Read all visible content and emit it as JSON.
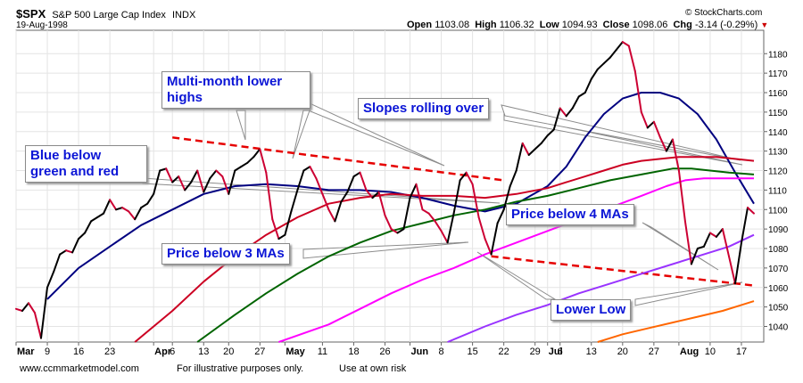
{
  "header": {
    "ticker": "$SPX",
    "name": "S&P 500 Large Cap Index",
    "exchange": "INDX",
    "date": "19-Aug-1998",
    "attribution": "© StockCharts.com",
    "quote": {
      "open_label": "Open",
      "open": "1103.08",
      "high_label": "High",
      "high": "1106.32",
      "low_label": "Low",
      "low": "1094.93",
      "close_label": "Close",
      "close": "1098.06",
      "chg_label": "Chg",
      "chg": "-3.14 (-0.29%)",
      "chg_arrow": "▼",
      "chg_color": "#cc0000"
    }
  },
  "footer": {
    "website": "www.ccmmarketmodel.com",
    "disclaimer1": "For illustrative purposes only.",
    "disclaimer2": "Use at own risk"
  },
  "annotations": {
    "multi_month_l1": "Multi-month lower",
    "multi_month_l2": "highs",
    "slopes": "Slopes rolling over",
    "blue_below_l1": "Blue below",
    "blue_below_l2": "green and red",
    "price_below_3": "Price below 3 MAs",
    "price_below_4": "Price below 4 MAs",
    "lower_low": "Lower Low"
  },
  "chart_data": {
    "type": "line",
    "title": "$SPX S&P 500 Large Cap Index INDX",
    "x_ticks": [
      {
        "label": "Mar",
        "bold": true,
        "idx": 0
      },
      {
        "label": "9",
        "idx": 5
      },
      {
        "label": "16",
        "idx": 10
      },
      {
        "label": "23",
        "idx": 15
      },
      {
        "label": "Apr",
        "bold": true,
        "idx": 22
      },
      {
        "label": "6",
        "idx": 25
      },
      {
        "label": "13",
        "idx": 30
      },
      {
        "label": "20",
        "idx": 34
      },
      {
        "label": "27",
        "idx": 39
      },
      {
        "label": "May",
        "bold": true,
        "idx": 43
      },
      {
        "label": "11",
        "idx": 49
      },
      {
        "label": "18",
        "idx": 54
      },
      {
        "label": "26",
        "idx": 59
      },
      {
        "label": "Jun",
        "bold": true,
        "idx": 63
      },
      {
        "label": "8",
        "idx": 68
      },
      {
        "label": "15",
        "idx": 73
      },
      {
        "label": "22",
        "idx": 78
      },
      {
        "label": "29",
        "idx": 83
      },
      {
        "label": "Jul",
        "bold": true,
        "idx": 85
      },
      {
        "label": "6",
        "idx": 87
      },
      {
        "label": "13",
        "idx": 92
      },
      {
        "label": "20",
        "idx": 97
      },
      {
        "label": "27",
        "idx": 102
      },
      {
        "label": "Aug",
        "bold": true,
        "idx": 106
      },
      {
        "label": "10",
        "idx": 111
      },
      {
        "label": "17",
        "idx": 116
      }
    ],
    "y_ticks": [
      1040,
      1050,
      1060,
      1070,
      1080,
      1090,
      1100,
      1110,
      1120,
      1130,
      1140,
      1150,
      1160,
      1170,
      1180
    ],
    "ylim": [
      1032,
      1192
    ],
    "x_range": [
      0,
      119
    ],
    "grid": true,
    "price_series": {
      "name": "$SPX",
      "points": [
        [
          0,
          1049
        ],
        [
          1,
          1048
        ],
        [
          2,
          1052
        ],
        [
          3,
          1047
        ],
        [
          4,
          1034
        ],
        [
          5,
          1060
        ],
        [
          6,
          1068
        ],
        [
          7,
          1077
        ],
        [
          8,
          1079
        ],
        [
          9,
          1078
        ],
        [
          10,
          1085
        ],
        [
          11,
          1088
        ],
        [
          12,
          1094
        ],
        [
          13,
          1096
        ],
        [
          14,
          1098
        ],
        [
          15,
          1105
        ],
        [
          16,
          1100
        ],
        [
          17,
          1101
        ],
        [
          18,
          1099
        ],
        [
          19,
          1095
        ],
        [
          20,
          1101
        ],
        [
          21,
          1103
        ],
        [
          22,
          1108
        ],
        [
          23,
          1120
        ],
        [
          24,
          1121
        ],
        [
          25,
          1114
        ],
        [
          26,
          1117
        ],
        [
          27,
          1110
        ],
        [
          28,
          1114
        ],
        [
          29,
          1120
        ],
        [
          30,
          1109
        ],
        [
          31,
          1116
        ],
        [
          32,
          1120
        ],
        [
          33,
          1117
        ],
        [
          34,
          1108
        ],
        [
          35,
          1120
        ],
        [
          36,
          1122
        ],
        [
          37,
          1124
        ],
        [
          38,
          1127
        ],
        [
          39,
          1131
        ],
        [
          40,
          1119
        ],
        [
          41,
          1095
        ],
        [
          42,
          1085
        ],
        [
          43,
          1087
        ],
        [
          44,
          1099
        ],
        [
          45,
          1110
        ],
        [
          46,
          1120
        ],
        [
          47,
          1122
        ],
        [
          48,
          1116
        ],
        [
          49,
          1108
        ],
        [
          50,
          1100
        ],
        [
          51,
          1094
        ],
        [
          52,
          1104
        ],
        [
          53,
          1109
        ],
        [
          54,
          1117
        ],
        [
          55,
          1119
        ],
        [
          56,
          1110
        ],
        [
          57,
          1106
        ],
        [
          58,
          1109
        ],
        [
          59,
          1097
        ],
        [
          60,
          1090
        ],
        [
          61,
          1088
        ],
        [
          62,
          1090
        ],
        [
          63,
          1106
        ],
        [
          64,
          1113
        ],
        [
          65,
          1100
        ],
        [
          66,
          1098
        ],
        [
          67,
          1094
        ],
        [
          68,
          1089
        ],
        [
          69,
          1083
        ],
        [
          70,
          1098
        ],
        [
          71,
          1115
        ],
        [
          72,
          1119
        ],
        [
          73,
          1113
        ],
        [
          74,
          1096
        ],
        [
          75,
          1085
        ],
        [
          76,
          1077
        ],
        [
          77,
          1093
        ],
        [
          78,
          1100
        ],
        [
          79,
          1112
        ],
        [
          80,
          1120
        ],
        [
          81,
          1134
        ],
        [
          82,
          1128
        ],
        [
          83,
          1131
        ],
        [
          84,
          1134
        ],
        [
          85,
          1138
        ],
        [
          86,
          1141
        ],
        [
          87,
          1152
        ],
        [
          88,
          1148
        ],
        [
          89,
          1152
        ],
        [
          90,
          1158
        ],
        [
          91,
          1160
        ],
        [
          92,
          1167
        ],
        [
          93,
          1172
        ],
        [
          94,
          1175
        ],
        [
          95,
          1178
        ],
        [
          96,
          1182
        ],
        [
          97,
          1186
        ],
        [
          98,
          1184
        ],
        [
          99,
          1171
        ],
        [
          100,
          1150
        ],
        [
          101,
          1142
        ],
        [
          102,
          1145
        ],
        [
          103,
          1137
        ],
        [
          104,
          1130
        ],
        [
          105,
          1136
        ],
        [
          106,
          1120
        ],
        [
          107,
          1094
        ],
        [
          108,
          1072
        ],
        [
          109,
          1080
        ],
        [
          110,
          1081
        ],
        [
          111,
          1088
        ],
        [
          112,
          1086
        ],
        [
          113,
          1090
        ],
        [
          114,
          1076
        ],
        [
          115,
          1062
        ],
        [
          116,
          1083
        ],
        [
          117,
          1101
        ],
        [
          118,
          1098
        ]
      ],
      "colors": {
        "up": "#000000",
        "down": "#cc0033"
      }
    },
    "series": [
      {
        "color": "#000080",
        "width": 2,
        "points": [
          [
            5,
            1054
          ],
          [
            10,
            1070
          ],
          [
            15,
            1081
          ],
          [
            20,
            1092
          ],
          [
            25,
            1100
          ],
          [
            30,
            1108
          ],
          [
            35,
            1112
          ],
          [
            40,
            1113
          ],
          [
            45,
            1112
          ],
          [
            50,
            1110
          ],
          [
            55,
            1110
          ],
          [
            60,
            1109
          ],
          [
            65,
            1106
          ],
          [
            70,
            1102
          ],
          [
            75,
            1099
          ],
          [
            80,
            1103
          ],
          [
            85,
            1112
          ],
          [
            88,
            1122
          ],
          [
            91,
            1137
          ],
          [
            94,
            1149
          ],
          [
            97,
            1157
          ],
          [
            100,
            1160
          ],
          [
            103,
            1160
          ],
          [
            106,
            1157
          ],
          [
            109,
            1149
          ],
          [
            112,
            1136
          ],
          [
            115,
            1119
          ],
          [
            118,
            1103
          ]
        ]
      },
      {
        "color": "#cc0022",
        "width": 2,
        "points": [
          [
            19,
            1032
          ],
          [
            25,
            1048
          ],
          [
            30,
            1063
          ],
          [
            35,
            1076
          ],
          [
            40,
            1087
          ],
          [
            45,
            1096
          ],
          [
            50,
            1103
          ],
          [
            55,
            1106
          ],
          [
            60,
            1108
          ],
          [
            65,
            1107
          ],
          [
            70,
            1107
          ],
          [
            75,
            1106
          ],
          [
            80,
            1108
          ],
          [
            85,
            1111
          ],
          [
            88,
            1114
          ],
          [
            91,
            1117
          ],
          [
            94,
            1120
          ],
          [
            97,
            1123
          ],
          [
            100,
            1125
          ],
          [
            103,
            1126
          ],
          [
            106,
            1127
          ],
          [
            109,
            1127
          ],
          [
            112,
            1127
          ],
          [
            115,
            1126
          ],
          [
            118,
            1125
          ]
        ]
      },
      {
        "color": "#006400",
        "width": 2,
        "points": [
          [
            29,
            1032
          ],
          [
            35,
            1046
          ],
          [
            40,
            1057
          ],
          [
            45,
            1067
          ],
          [
            50,
            1076
          ],
          [
            55,
            1083
          ],
          [
            60,
            1089
          ],
          [
            65,
            1093
          ],
          [
            70,
            1097
          ],
          [
            75,
            1100
          ],
          [
            80,
            1104
          ],
          [
            85,
            1107
          ],
          [
            90,
            1111
          ],
          [
            95,
            1115
          ],
          [
            100,
            1118
          ],
          [
            105,
            1121
          ],
          [
            108,
            1121
          ],
          [
            111,
            1120
          ],
          [
            114,
            1119
          ],
          [
            118,
            1118
          ]
        ]
      },
      {
        "color": "#ff00ff",
        "width": 2,
        "points": [
          [
            42,
            1032
          ],
          [
            50,
            1041
          ],
          [
            55,
            1049
          ],
          [
            60,
            1057
          ],
          [
            65,
            1064
          ],
          [
            70,
            1070
          ],
          [
            75,
            1077
          ],
          [
            80,
            1083
          ],
          [
            85,
            1089
          ],
          [
            90,
            1095
          ],
          [
            95,
            1101
          ],
          [
            100,
            1107
          ],
          [
            104,
            1112
          ],
          [
            107,
            1115
          ],
          [
            110,
            1116
          ],
          [
            114,
            1116
          ],
          [
            118,
            1116
          ]
        ]
      },
      {
        "color": "#9933ff",
        "width": 2,
        "points": [
          [
            69,
            1032
          ],
          [
            75,
            1040
          ],
          [
            80,
            1046
          ],
          [
            85,
            1051
          ],
          [
            90,
            1057
          ],
          [
            95,
            1062
          ],
          [
            100,
            1067
          ],
          [
            105,
            1072
          ],
          [
            110,
            1077
          ],
          [
            114,
            1081
          ],
          [
            118,
            1087
          ]
        ]
      },
      {
        "color": "#ff6600",
        "width": 2,
        "points": [
          [
            93,
            1032
          ],
          [
            97,
            1036
          ],
          [
            101,
            1039
          ],
          [
            105,
            1042
          ],
          [
            109,
            1045
          ],
          [
            113,
            1048
          ],
          [
            116,
            1051
          ],
          [
            118,
            1053
          ]
        ]
      }
    ],
    "trendlines": [
      {
        "color": "#e60000",
        "dashed": true,
        "points": [
          [
            25,
            1137
          ],
          [
            78,
            1115
          ]
        ]
      },
      {
        "color": "#e60000",
        "dashed": true,
        "points": [
          [
            76,
            1076
          ],
          [
            118,
            1061
          ]
        ]
      }
    ]
  }
}
